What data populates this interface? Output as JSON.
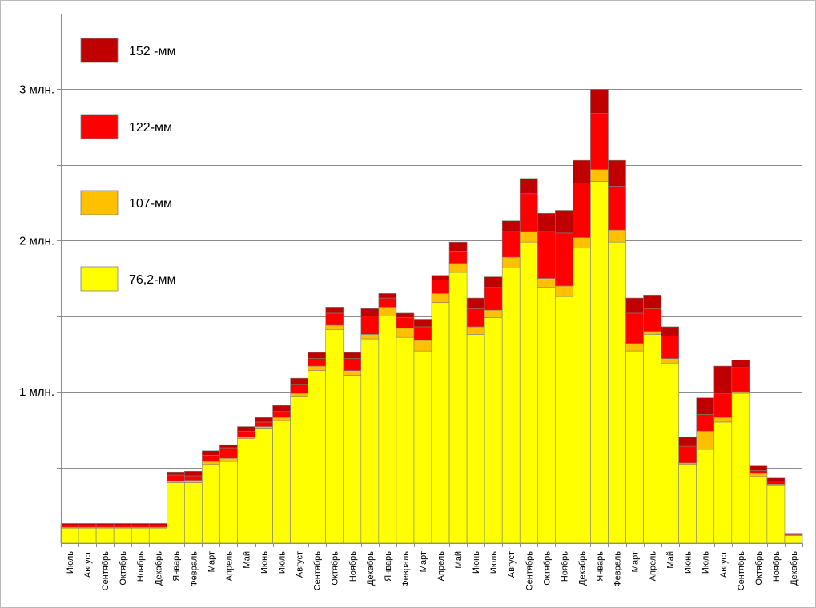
{
  "chart_data": {
    "type": "bar",
    "stacked": true,
    "grid": true,
    "legend_position": "top-left",
    "title": "",
    "xlabel": "",
    "ylabel": "",
    "ylim": [
      0,
      3500000
    ],
    "yticks": [
      {
        "value": 1000000,
        "label": "1 млн."
      },
      {
        "value": 2000000,
        "label": "2 млн."
      },
      {
        "value": 3000000,
        "label": "3 млн."
      }
    ],
    "gridlines": [
      500000,
      1000000,
      1500000,
      2000000,
      2500000,
      3000000
    ],
    "categories": [
      "Июль",
      "Август",
      "Сентябрь",
      "Октябрь",
      "Ноябрь",
      "Декабрь",
      "Январь",
      "Февраль",
      "Март",
      "Апрель",
      "Май",
      "Июнь",
      "Июль",
      "Август",
      "Сентябрь",
      "Октябрь",
      "Ноябрь",
      "Декабрь",
      "Январь",
      "Февраль",
      "Март",
      "Апрель",
      "Май",
      "Июнь",
      "Июль",
      "Август",
      "Сентябрь",
      "Октябрь",
      "Ноябрь",
      "Декабрь",
      "Январь",
      "Февраль",
      "Март",
      "Апрель",
      "Май",
      "Июнь",
      "Июль",
      "Август",
      "Сентябрь",
      "Октябрь",
      "Ноябрь",
      "Декабрь"
    ],
    "series": [
      {
        "name": "76,2-мм",
        "color": "#ffff00",
        "values": [
          100000,
          100000,
          100000,
          100000,
          100000,
          100000,
          400000,
          400000,
          520000,
          540000,
          690000,
          760000,
          810000,
          970000,
          1140000,
          1410000,
          1110000,
          1350000,
          1500000,
          1360000,
          1270000,
          1590000,
          1790000,
          1380000,
          1490000,
          1820000,
          1990000,
          1690000,
          1630000,
          1950000,
          2390000,
          1990000,
          1270000,
          1380000,
          1190000,
          520000,
          620000,
          800000,
          990000,
          440000,
          380000,
          50000
        ]
      },
      {
        "name": "107-мм",
        "color": "#ffc000",
        "values": [
          5000,
          5000,
          5000,
          5000,
          5000,
          5000,
          10000,
          15000,
          20000,
          20000,
          10000,
          10000,
          20000,
          20000,
          30000,
          30000,
          30000,
          30000,
          60000,
          60000,
          70000,
          60000,
          60000,
          50000,
          50000,
          70000,
          70000,
          60000,
          70000,
          70000,
          80000,
          80000,
          50000,
          20000,
          30000,
          10000,
          120000,
          30000,
          10000,
          20000,
          10000,
          5000
        ]
      },
      {
        "name": "122-мм",
        "color": "#ff0000",
        "values": [
          15000,
          15000,
          15000,
          15000,
          15000,
          15000,
          40000,
          30000,
          40000,
          70000,
          40000,
          30000,
          40000,
          60000,
          50000,
          80000,
          80000,
          120000,
          60000,
          70000,
          90000,
          90000,
          80000,
          120000,
          150000,
          170000,
          250000,
          310000,
          350000,
          360000,
          370000,
          290000,
          200000,
          150000,
          150000,
          110000,
          110000,
          160000,
          160000,
          20000,
          20000,
          5000
        ]
      },
      {
        "name": "152 -мм",
        "color": "#c00000",
        "values": [
          10000,
          10000,
          10000,
          10000,
          10000,
          10000,
          20000,
          30000,
          30000,
          20000,
          30000,
          30000,
          40000,
          40000,
          40000,
          40000,
          40000,
          50000,
          30000,
          30000,
          50000,
          30000,
          60000,
          70000,
          70000,
          70000,
          100000,
          120000,
          150000,
          150000,
          160000,
          170000,
          100000,
          90000,
          60000,
          60000,
          110000,
          180000,
          50000,
          30000,
          20000,
          5000
        ]
      }
    ]
  }
}
